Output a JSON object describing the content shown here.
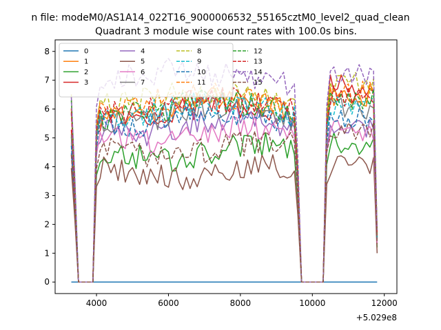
{
  "figure": {
    "suptitle": "n file: modeM0/AS1A14_022T16_9000006532_55165cztM0_level2_quad_clean",
    "title": "Quadrant 3 module wise count rates with 100.0s bins.",
    "offset_text": "+5.029e8"
  },
  "chart_data": {
    "type": "line",
    "title": "Quadrant 3 module wise count rates with 100.0s bins.",
    "xlabel": "",
    "ylabel": "",
    "xlim": [
      2850,
      12350
    ],
    "ylim": [
      -0.4,
      8.4
    ],
    "x_offset": 502900000,
    "xticks": [
      4000,
      6000,
      8000,
      10000,
      12000
    ],
    "yticks": [
      0,
      1,
      2,
      3,
      4,
      5,
      6,
      7,
      8
    ],
    "grid": false,
    "legend": {
      "placement": "top-left",
      "columns": 4
    },
    "x": {
      "start": 3300,
      "end": 11800,
      "step": 100
    },
    "series": [
      {
        "name": "0",
        "color": "#1f77b4",
        "dash": "solid",
        "level": 0
      },
      {
        "name": "1",
        "color": "#ff7f0e",
        "dash": "solid",
        "level": 6.1,
        "entry": 5.8,
        "gap2": 6.5
      },
      {
        "name": "2",
        "color": "#2ca02c",
        "dash": "solid",
        "level": 4.5,
        "entry": 4.9,
        "gap2": 4.8
      },
      {
        "name": "3",
        "color": "#d62728",
        "dash": "solid",
        "level": 5.9,
        "entry": 5.5,
        "gap2": 6.8
      },
      {
        "name": "4",
        "color": "#9467bd",
        "dash": "solid",
        "level": 5.4,
        "entry": 4.6,
        "gap2": 5.4
      },
      {
        "name": "5",
        "color": "#8c564b",
        "dash": "solid",
        "level": 3.8,
        "entry": 4.0,
        "gap2": 4.0
      },
      {
        "name": "6",
        "color": "#e377c2",
        "dash": "solid",
        "level": 5.1,
        "entry": 4.8,
        "gap2": 5.3
      },
      {
        "name": "7",
        "color": "#7f7f7f",
        "dash": "solid",
        "level": 5.8,
        "entry": 5.0,
        "gap2": 6.0
      },
      {
        "name": "8",
        "color": "#bcbd22",
        "dash": "dashed",
        "level": 6.4,
        "entry": 6.3,
        "gap2": 6.9
      },
      {
        "name": "9",
        "color": "#17becf",
        "dash": "dashed",
        "level": 6.0,
        "entry": 6.0,
        "gap2": 6.2
      },
      {
        "name": "10",
        "color": "#1f77b4",
        "dash": "dashed",
        "level": 5.6,
        "entry": 4.8,
        "gap2": 5.7
      },
      {
        "name": "11",
        "color": "#ff7f0e",
        "dash": "dashed",
        "level": 6.3,
        "entry": 6.0,
        "gap2": 6.6
      },
      {
        "name": "12",
        "color": "#2ca02c",
        "dash": "dashed",
        "level": 6.0,
        "entry": 6.2,
        "gap2": 6.3
      },
      {
        "name": "13",
        "color": "#d62728",
        "dash": "dashed",
        "level": 6.1,
        "entry": 5.7,
        "gap2": 6.5
      },
      {
        "name": "14",
        "color": "#9467bd",
        "dash": "dashed",
        "level": 7.1,
        "entry": 6.6,
        "gap2": 7.2
      },
      {
        "name": "15",
        "color": "#8c564b",
        "dash": "dashed",
        "level": 4.6,
        "entry": 4.5,
        "gap2": 5.3
      }
    ]
  }
}
